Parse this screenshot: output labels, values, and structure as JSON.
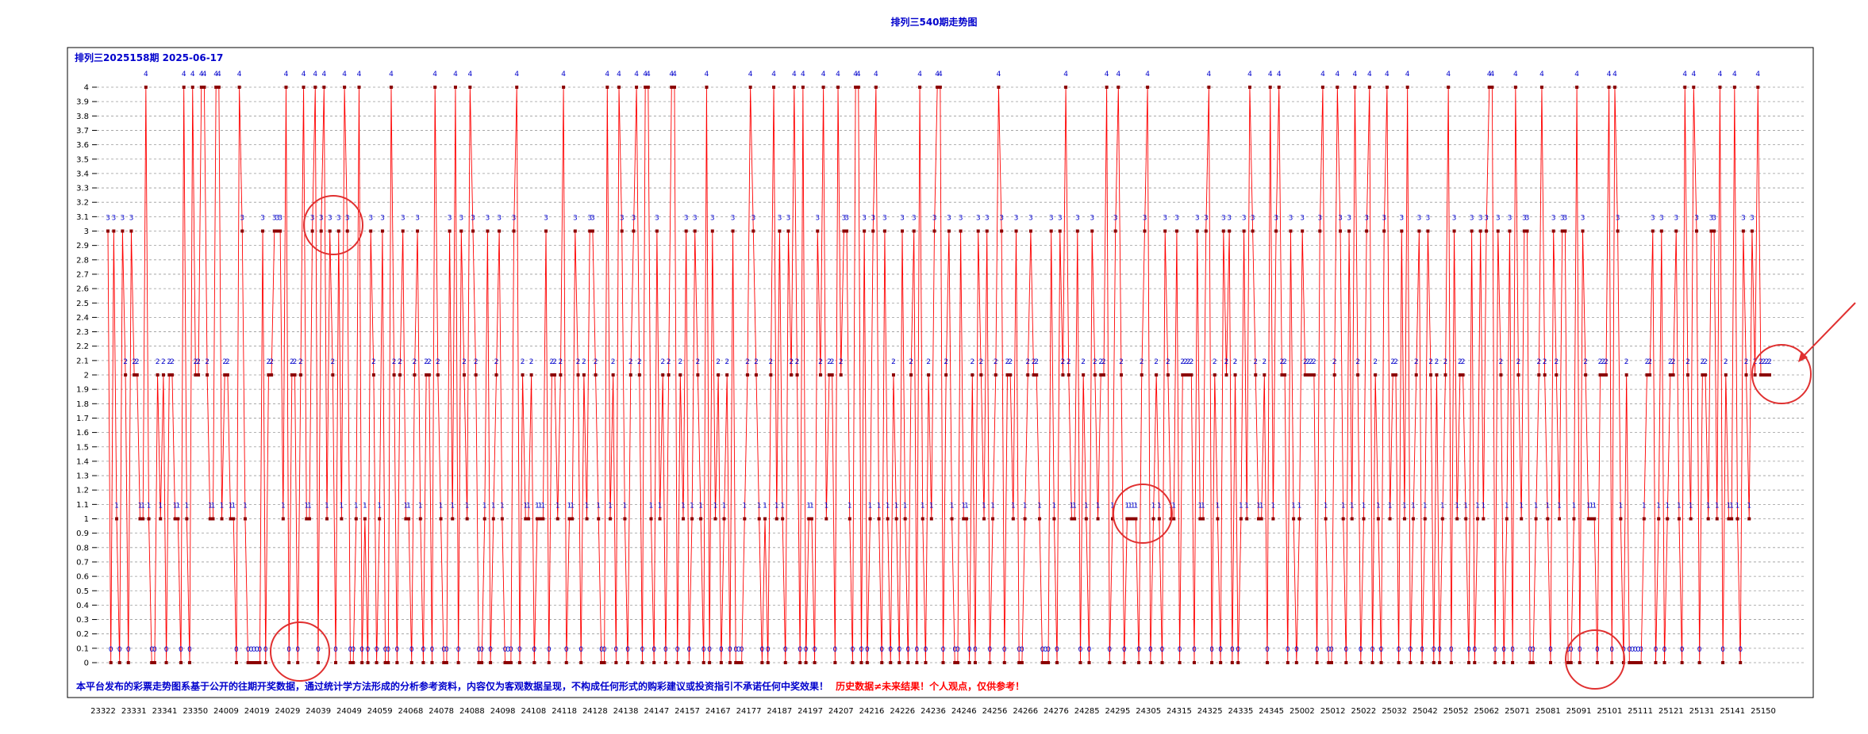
{
  "chart_data": {
    "type": "line",
    "title": "排列三540期走势图",
    "subtitle": "排列三2025158期  2025-06-17",
    "xlabel": "",
    "ylabel": "",
    "ylim": [
      0,
      4
    ],
    "yticks": [
      "0",
      "0.1",
      "0.2",
      "0.3",
      "0.4",
      "0.5",
      "0.6",
      "0.7",
      "0.8",
      "0.9",
      "1",
      "1.1",
      "1.2",
      "1.3",
      "1.4",
      "1.5",
      "1.6",
      "1.7",
      "1.8",
      "1.9",
      "2",
      "2.1",
      "2.2",
      "2.3",
      "2.4",
      "2.5",
      "2.6",
      "2.7",
      "2.8",
      "2.9",
      "3",
      "3.1",
      "3.2",
      "3.3",
      "3.4",
      "3.5",
      "3.6",
      "3.7",
      "3.8",
      "3.9",
      "4"
    ],
    "xticks": [
      "23322",
      "23331",
      "23341",
      "23350",
      "24009",
      "24019",
      "24029",
      "24039",
      "24049",
      "24059",
      "24068",
      "24078",
      "24088",
      "24098",
      "24108",
      "24118",
      "24128",
      "24138",
      "24147",
      "24157",
      "24167",
      "24177",
      "24187",
      "24197",
      "24207",
      "24216",
      "24226",
      "24236",
      "24246",
      "24256",
      "24266",
      "24276",
      "24285",
      "24295",
      "24305",
      "24315",
      "24325",
      "24335",
      "24345",
      "25002",
      "25012",
      "25022",
      "25032",
      "25042",
      "25052",
      "25062",
      "25071",
      "25081",
      "25091",
      "25101",
      "25111",
      "25121",
      "25131",
      "25141",
      "25150"
    ],
    "grid": true,
    "series": [
      {
        "name": "走势",
        "color": "#ff0000",
        "values": [
          3,
          0,
          3,
          1,
          0,
          3,
          2,
          0,
          3,
          2,
          2,
          1,
          1,
          4,
          1,
          0,
          0,
          2,
          1,
          2,
          0,
          2,
          2,
          1,
          1,
          0,
          4,
          1,
          0,
          4,
          2,
          2,
          4,
          4,
          2,
          1,
          1,
          4,
          4,
          1,
          2,
          2,
          1,
          1,
          0,
          4,
          3,
          1,
          0,
          0,
          0,
          0,
          0,
          3,
          0,
          2,
          2,
          3,
          3,
          3,
          1,
          4,
          0,
          2,
          2,
          0,
          2,
          4,
          1,
          1,
          3,
          4,
          0,
          3,
          4,
          1,
          3,
          2,
          0,
          3,
          1,
          4,
          3,
          0,
          0,
          1,
          4,
          0,
          1,
          0,
          3,
          2,
          0,
          1,
          3,
          0,
          0,
          4,
          2,
          0,
          2,
          3,
          1,
          1,
          0,
          2,
          3,
          1,
          0,
          2,
          2,
          0,
          4,
          2,
          1,
          0,
          0,
          3,
          1,
          4,
          0,
          3,
          2,
          1,
          4,
          3,
          2,
          0,
          0,
          1,
          3,
          0,
          1,
          2,
          3,
          1,
          0,
          0,
          0,
          3,
          4,
          0,
          2,
          1,
          1,
          2,
          0,
          1,
          1,
          1,
          3,
          0,
          2,
          2,
          1,
          2,
          4,
          0,
          1,
          1,
          3,
          2,
          0,
          2,
          1,
          3,
          3,
          2,
          1,
          0,
          0,
          4,
          1,
          2,
          0,
          4,
          3,
          1,
          0,
          2,
          3,
          4,
          2,
          0,
          4,
          4,
          1,
          0,
          3,
          1,
          2,
          0,
          2,
          4,
          4,
          0,
          2,
          1,
          3,
          0,
          1,
          3,
          2,
          1,
          0,
          4,
          0,
          3,
          1,
          2,
          0,
          1,
          2,
          0,
          3,
          0,
          0,
          0,
          1,
          2,
          4,
          3,
          2,
          1,
          0,
          1,
          0,
          2,
          4,
          1,
          3,
          1,
          0,
          3,
          2,
          4,
          2,
          0,
          4,
          0,
          1,
          1,
          0,
          3,
          2,
          4,
          1,
          2,
          2,
          0,
          4,
          2,
          3,
          3,
          1,
          0,
          4,
          4,
          0,
          3,
          0,
          1,
          3,
          4,
          1,
          0,
          3,
          1,
          0,
          2,
          1,
          0,
          3,
          1,
          0,
          2,
          3,
          0,
          4,
          1,
          0,
          2,
          1,
          3,
          4,
          4,
          0,
          2,
          3,
          1,
          0,
          0,
          3,
          1,
          1,
          0,
          2,
          0,
          3,
          2,
          1,
          3,
          0,
          1,
          2,
          4,
          3,
          0,
          2,
          2,
          1,
          3,
          0,
          0,
          1,
          2,
          3,
          2,
          2,
          1,
          0,
          0,
          0,
          3,
          1,
          0,
          3,
          2,
          4,
          2,
          1,
          1,
          3,
          0,
          2,
          1,
          0,
          3,
          2,
          1,
          2,
          2,
          4,
          0,
          1,
          3,
          4,
          2,
          0,
          1,
          1,
          1,
          1,
          0,
          2,
          3,
          4,
          0,
          1,
          2,
          1,
          0,
          3,
          2,
          1,
          1,
          3,
          0,
          2,
          2,
          2,
          2,
          0,
          3,
          1,
          1,
          3,
          4,
          0,
          2,
          1,
          0,
          3,
          2,
          3,
          0,
          2,
          0,
          1,
          3,
          1,
          4,
          3,
          2,
          1,
          1,
          2,
          0,
          4,
          1,
          3,
          4,
          2,
          2,
          0,
          3,
          1,
          0,
          1,
          3,
          2,
          2,
          2,
          2,
          0,
          3,
          4,
          1,
          0,
          0,
          2,
          4,
          3,
          1,
          0,
          3,
          1,
          4,
          2,
          0,
          1,
          3,
          4,
          0,
          2,
          1,
          0,
          3,
          4,
          1,
          2,
          2,
          0,
          3,
          1,
          4,
          0,
          1,
          2,
          3,
          0,
          1,
          3,
          2,
          0,
          2,
          0,
          1,
          2,
          4,
          0,
          3,
          1,
          2,
          2,
          1,
          0,
          3,
          0,
          1,
          3,
          1,
          3,
          4,
          4,
          0,
          3,
          2,
          0,
          1,
          3,
          0,
          4,
          2,
          1,
          3,
          3,
          0,
          0,
          1,
          2,
          4,
          2,
          1,
          0,
          3,
          2,
          1,
          3,
          3,
          0,
          0,
          1,
          4,
          0,
          3,
          2,
          1,
          1,
          1,
          0,
          2,
          2,
          2,
          4,
          0,
          4,
          3,
          1,
          0,
          2,
          0,
          0,
          0,
          0,
          0,
          1,
          2,
          2,
          3,
          0,
          1,
          3,
          0,
          1,
          2,
          2,
          3,
          1,
          0,
          4,
          2,
          1,
          4,
          3,
          0,
          2,
          2,
          1,
          3,
          3,
          1,
          4,
          0,
          2,
          1,
          1,
          4,
          1,
          0,
          3,
          2,
          1,
          3,
          2,
          4,
          2,
          2,
          2,
          2
        ]
      }
    ],
    "disclaimer_blue": "本平台发布的彩票走势图系基于公开的往期开奖数据，通过统计学方法形成的分析参考资料，内容仅为客观数据呈现，不构成任何形式的购彩建议或投资指引不承诺任何中奖效果！",
    "disclaimer_red": "历史数据≠未来结果！个人观点，仅供参考！"
  }
}
